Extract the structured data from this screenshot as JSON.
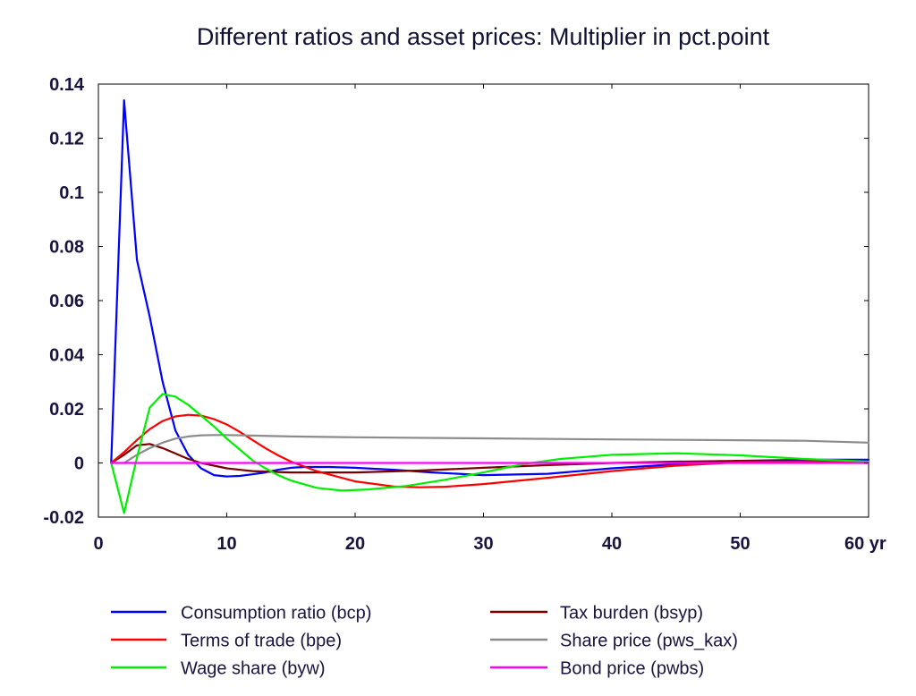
{
  "chart_data": {
    "type": "line",
    "title": "Different ratios and asset prices: Multiplier in pct.point",
    "xlim": [
      0,
      60
    ],
    "ylim": [
      -0.02,
      0.14
    ],
    "x_ticks": [
      0,
      10,
      20,
      30,
      40,
      50,
      60
    ],
    "x_tick_labels": [
      "0",
      "10",
      "20",
      "30",
      "40",
      "50",
      "60 yr"
    ],
    "y_ticks": [
      -0.02,
      0,
      0.02,
      0.04,
      0.06,
      0.08,
      0.1,
      0.12,
      0.14
    ],
    "y_tick_labels": [
      "-0.02",
      "0",
      "0.02",
      "0.04",
      "0.06",
      "0.08",
      "0.1",
      "0.12",
      "0.14"
    ],
    "grid": false,
    "legend_position": "bottom",
    "series": [
      {
        "name": "Consumption ratio (bcp)",
        "color": "#0000ff",
        "points": [
          [
            1,
            0
          ],
          [
            2,
            0.134
          ],
          [
            3,
            0.075
          ],
          [
            4,
            0.054
          ],
          [
            5,
            0.03
          ],
          [
            6,
            0.012
          ],
          [
            7,
            0.003
          ],
          [
            8,
            -0.002
          ],
          [
            9,
            -0.0045
          ],
          [
            10,
            -0.005
          ],
          [
            11,
            -0.0048
          ],
          [
            12,
            -0.0042
          ],
          [
            13,
            -0.0035
          ],
          [
            14,
            -0.0025
          ],
          [
            15,
            -0.0018
          ],
          [
            16,
            -0.0015
          ],
          [
            18,
            -0.0015
          ],
          [
            20,
            -0.0018
          ],
          [
            23,
            -0.0025
          ],
          [
            26,
            -0.0035
          ],
          [
            30,
            -0.0045
          ],
          [
            35,
            -0.004
          ],
          [
            40,
            -0.002
          ],
          [
            45,
            -0.0005
          ],
          [
            50,
            0.0008
          ],
          [
            55,
            0.0012
          ],
          [
            60,
            0.0012
          ]
        ]
      },
      {
        "name": "Tax burden (bsyp)",
        "color": "#7a0000",
        "points": [
          [
            1,
            0
          ],
          [
            2,
            0.003
          ],
          [
            3,
            0.0065
          ],
          [
            4,
            0.007
          ],
          [
            5,
            0.0055
          ],
          [
            6,
            0.0035
          ],
          [
            7,
            0.0015
          ],
          [
            8,
            0
          ],
          [
            10,
            -0.002
          ],
          [
            12,
            -0.003
          ],
          [
            15,
            -0.0035
          ],
          [
            20,
            -0.0035
          ],
          [
            25,
            -0.0028
          ],
          [
            30,
            -0.0018
          ],
          [
            35,
            -0.0008
          ],
          [
            40,
            0
          ],
          [
            45,
            0.0005
          ],
          [
            50,
            0.0008
          ],
          [
            55,
            0.0006
          ],
          [
            60,
            0.0003
          ]
        ]
      },
      {
        "name": "Terms of trade (bpe)",
        "color": "#ff0000",
        "points": [
          [
            1,
            0
          ],
          [
            2,
            0.004
          ],
          [
            3,
            0.0085
          ],
          [
            4,
            0.0125
          ],
          [
            5,
            0.0155
          ],
          [
            6,
            0.0172
          ],
          [
            7,
            0.0178
          ],
          [
            8,
            0.0175
          ],
          [
            9,
            0.0162
          ],
          [
            10,
            0.0142
          ],
          [
            11,
            0.0115
          ],
          [
            12,
            0.0085
          ],
          [
            13,
            0.0055
          ],
          [
            14,
            0.0028
          ],
          [
            15,
            0.0005
          ],
          [
            17,
            -0.003
          ],
          [
            20,
            -0.0068
          ],
          [
            23,
            -0.0087
          ],
          [
            25,
            -0.009
          ],
          [
            27,
            -0.0088
          ],
          [
            30,
            -0.0078
          ],
          [
            35,
            -0.0055
          ],
          [
            40,
            -0.003
          ],
          [
            45,
            -0.001
          ],
          [
            50,
            0.0003
          ],
          [
            55,
            0.0006
          ],
          [
            60,
            0.0004
          ]
        ]
      },
      {
        "name": "Share price (pws_kax)",
        "color": "#8c8c8c",
        "points": [
          [
            2,
            0
          ],
          [
            3,
            0.003
          ],
          [
            4,
            0.0055
          ],
          [
            5,
            0.0075
          ],
          [
            6,
            0.009
          ],
          [
            7,
            0.0098
          ],
          [
            8,
            0.0102
          ],
          [
            9,
            0.0103
          ],
          [
            10,
            0.0103
          ],
          [
            12,
            0.0101
          ],
          [
            15,
            0.0098
          ],
          [
            20,
            0.0095
          ],
          [
            30,
            0.0091
          ],
          [
            40,
            0.0087
          ],
          [
            50,
            0.0084
          ],
          [
            55,
            0.0082
          ],
          [
            60,
            0.0075
          ]
        ]
      },
      {
        "name": "Wage share (byw)",
        "color": "#00ee00",
        "points": [
          [
            1,
            0
          ],
          [
            2,
            -0.0185
          ],
          [
            3,
            0.002
          ],
          [
            4,
            0.0205
          ],
          [
            5,
            0.0255
          ],
          [
            6,
            0.0245
          ],
          [
            7,
            0.0215
          ],
          [
            8,
            0.0175
          ],
          [
            9,
            0.0135
          ],
          [
            10,
            0.009
          ],
          [
            11,
            0.005
          ],
          [
            12,
            0.001
          ],
          [
            13,
            -0.002
          ],
          [
            14,
            -0.0045
          ],
          [
            15,
            -0.0065
          ],
          [
            17,
            -0.0092
          ],
          [
            19,
            -0.0102
          ],
          [
            21,
            -0.0098
          ],
          [
            24,
            -0.0085
          ],
          [
            27,
            -0.0062
          ],
          [
            30,
            -0.0035
          ],
          [
            33,
            -0.0005
          ],
          [
            36,
            0.0015
          ],
          [
            40,
            0.003
          ],
          [
            45,
            0.0036
          ],
          [
            50,
            0.0028
          ],
          [
            55,
            0.0015
          ],
          [
            60,
            0.0005
          ]
        ]
      },
      {
        "name": "Bond price (pwbs)",
        "color": "#ff00ff",
        "points": [
          [
            1,
            0
          ],
          [
            60,
            0
          ]
        ]
      }
    ]
  }
}
